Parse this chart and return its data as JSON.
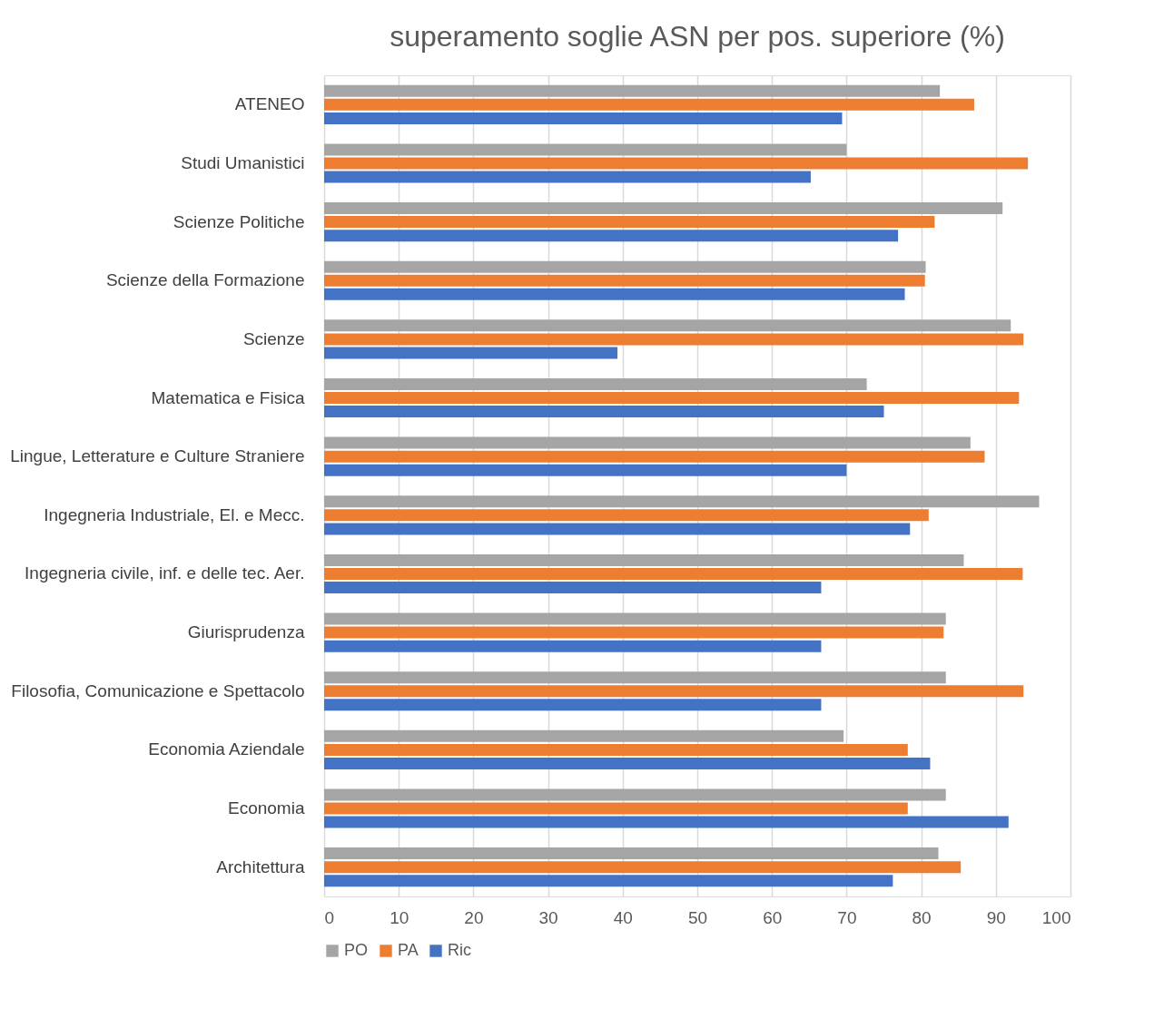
{
  "chart_data": {
    "type": "bar",
    "orientation": "horizontal",
    "title": "superamento soglie ASN per pos. superiore (%)",
    "categories": [
      "ATENEO",
      "Studi Umanistici",
      "Scienze Politiche",
      "Scienze della Formazione",
      "Scienze",
      "Matematica e Fisica",
      "Lingue, Letterature e Culture Straniere",
      "Ingegneria Industriale, El. e Mecc.",
      "Ingegneria civile, inf. e delle tec. Aer.",
      "Giurisprudenza",
      "Filosofia, Comunicazione e Spettacolo",
      "Economia Aziendale",
      "Economia",
      "Architettura"
    ],
    "series": [
      {
        "name": "PO",
        "color": "#a5a5a5",
        "values": [
          82.5,
          70.0,
          90.9,
          80.6,
          92.0,
          72.7,
          86.6,
          95.8,
          85.7,
          83.3,
          83.3,
          69.6,
          83.3,
          82.3
        ]
      },
      {
        "name": "PA",
        "color": "#ed7d31",
        "values": [
          87.1,
          94.3,
          81.8,
          80.5,
          93.7,
          93.1,
          88.5,
          81.0,
          93.6,
          83.0,
          93.7,
          78.2,
          78.2,
          85.3
        ]
      },
      {
        "name": "Ric",
        "color": "#4472c4",
        "values": [
          69.4,
          65.2,
          76.9,
          77.8,
          39.3,
          75.0,
          70.0,
          78.5,
          66.6,
          66.6,
          66.6,
          81.2,
          91.7,
          76.2
        ]
      }
    ],
    "xlim": [
      0,
      100
    ],
    "xticks": [
      0,
      10,
      20,
      30,
      40,
      50,
      60,
      70,
      80,
      90,
      100
    ],
    "grid": "x",
    "legend": "bottom"
  }
}
